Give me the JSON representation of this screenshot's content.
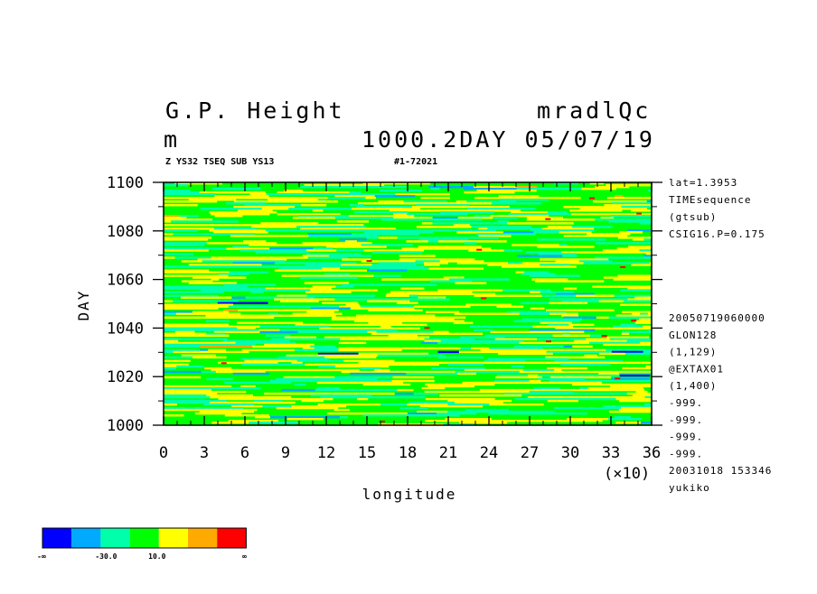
{
  "header": {
    "title_left": "G.P. Height",
    "title_right": "mradlQc",
    "units": "m",
    "time_info": "1000.2DAY 05/07/19",
    "sub_left": "Z YS32 TSEQ SUB YS13",
    "sub_right": "#1-72021"
  },
  "info_upper": [
    "lat=1.3953",
    "TIMEsequence",
    "(gtsub)",
    "CSIG16.P=0.175"
  ],
  "info_lower": [
    "20050719060000",
    "GLON128",
    "(1,129)",
    "@EXTAX01",
    "(1,400)",
    "-999.",
    "-999.",
    "-999.",
    "-999.",
    "20031018 153346",
    "yukiko"
  ],
  "colors": {
    "levels": [
      "#0000ff",
      "#00aaff",
      "#00ffaa",
      "#00ff00",
      "#ffff00",
      "#ffaa00",
      "#ff0000"
    ],
    "background": "#00ff00"
  },
  "colorbar": {
    "labels": [
      "-∞",
      "-30.0",
      "10.0",
      "∞"
    ]
  },
  "chart_data": {
    "type": "heatmap",
    "title": "G.P. Height",
    "xlabel": "longitude",
    "ylabel": "DAY",
    "x_unit_note": "(×10)",
    "xlim": [
      0,
      36
    ],
    "ylim": [
      1000,
      1100
    ],
    "x_ticks": [
      "0",
      "3",
      "6",
      "9",
      "12",
      "15",
      "18",
      "21",
      "24",
      "27",
      "30",
      "33",
      "36"
    ],
    "y_ticks": [
      "1000",
      "1020",
      "1040",
      "1060",
      "1080",
      "1100"
    ],
    "x_tick_values": [
      0,
      3,
      6,
      9,
      12,
      15,
      18,
      21,
      24,
      27,
      30,
      33,
      36
    ],
    "y_tick_values": [
      1000,
      1020,
      1040,
      1060,
      1080,
      1100
    ],
    "dominant_levels": [
      "green",
      "yellow",
      "cyan",
      "blue",
      "orange",
      "red"
    ]
  }
}
